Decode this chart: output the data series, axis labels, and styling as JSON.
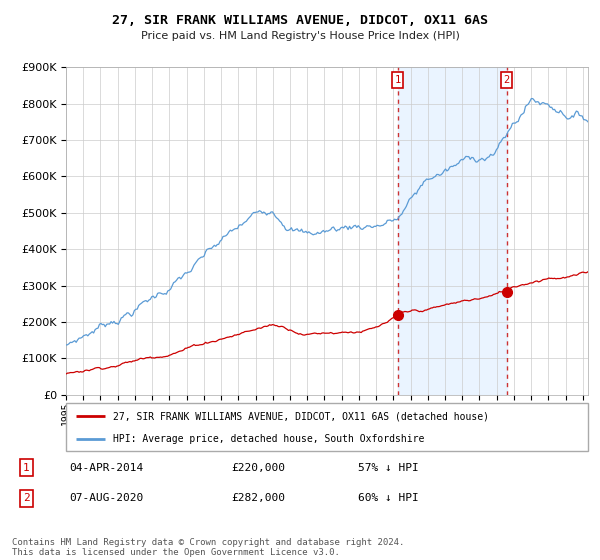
{
  "title": "27, SIR FRANK WILLIAMS AVENUE, DIDCOT, OX11 6AS",
  "subtitle": "Price paid vs. HM Land Registry's House Price Index (HPI)",
  "background_color": "#ffffff",
  "grid_color": "#cccccc",
  "hpi_color": "#5b9bd5",
  "property_color": "#cc0000",
  "purchase1_date": "04-APR-2014",
  "purchase1_price": 220000,
  "purchase1_pct": "57% ↓ HPI",
  "purchase2_date": "07-AUG-2020",
  "purchase2_price": 282000,
  "purchase2_pct": "60% ↓ HPI",
  "legend_property": "27, SIR FRANK WILLIAMS AVENUE, DIDCOT, OX11 6AS (detached house)",
  "legend_hpi": "HPI: Average price, detached house, South Oxfordshire",
  "footer": "Contains HM Land Registry data © Crown copyright and database right 2024.\nThis data is licensed under the Open Government Licence v3.0.",
  "ylim": [
    0,
    900000
  ],
  "yticks": [
    0,
    100000,
    200000,
    300000,
    400000,
    500000,
    600000,
    700000,
    800000,
    900000
  ],
  "purchase1_x": 2014.25,
  "purchase1_y": 220000,
  "purchase2_x": 2020.58,
  "purchase2_y": 282000,
  "vline1_x": 2014.25,
  "vline2_x": 2020.58,
  "xmin": 1995,
  "xmax": 2025.3
}
